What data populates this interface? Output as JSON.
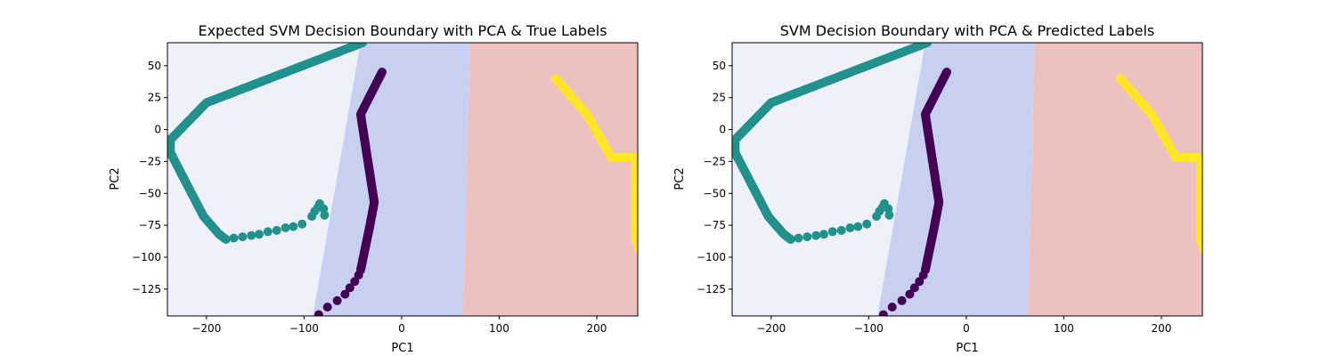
{
  "chart_data": [
    {
      "type": "scatter",
      "title": "Expected SVM Decision Boundary with PCA & True Labels",
      "xlabel": "PC1",
      "ylabel": "PC2",
      "xlim": [
        -240,
        242
      ],
      "ylim": [
        -146,
        68
      ],
      "xticks": [
        -200,
        -100,
        0,
        100,
        200
      ],
      "yticks": [
        50,
        25,
        0,
        -25,
        -50,
        -75,
        -100,
        -125
      ],
      "regions": [
        {
          "color": "#eef1f9",
          "polygon": [
            [
              -240,
              68
            ],
            [
              -42,
              68
            ],
            [
              -91,
              -146
            ],
            [
              -240,
              -146
            ]
          ]
        },
        {
          "color": "#c7d0f1",
          "polygon": [
            [
              -42,
              68
            ],
            [
              70,
              68
            ],
            [
              63,
              -146
            ],
            [
              -91,
              -146
            ]
          ]
        },
        {
          "color": "#eec1c1",
          "polygon": [
            [
              70,
              68
            ],
            [
              242,
              68
            ],
            [
              242,
              -146
            ],
            [
              63,
              -146
            ]
          ]
        }
      ],
      "series": [
        {
          "color": "#21918c",
          "dense": true,
          "points": [
            [
              -40,
              68
            ],
            [
              -200,
              21
            ],
            [
              -237,
              -8
            ],
            [
              -237,
              -18
            ],
            [
              -203,
              -68
            ],
            [
              -187,
              -82
            ],
            [
              -180,
              -86
            ]
          ]
        },
        {
          "color": "#21918c",
          "dense": false,
          "points": [
            [
              -180,
              -86
            ],
            [
              -172,
              -85
            ],
            [
              -163,
              -84
            ],
            [
              -154,
              -83
            ],
            [
              -146,
              -82
            ],
            [
              -137,
              -80
            ],
            [
              -128,
              -79
            ],
            [
              -119,
              -77
            ],
            [
              -111,
              -76
            ],
            [
              -102,
              -74
            ],
            [
              -92,
              -68
            ],
            [
              -89,
              -64
            ],
            [
              -86,
              -61
            ],
            [
              -84,
              -58
            ],
            [
              -80,
              -62
            ],
            [
              -79,
              -67
            ]
          ]
        },
        {
          "color": "#440154",
          "dense": true,
          "points": [
            [
              -20,
              45
            ],
            [
              -42,
              12
            ],
            [
              -28,
              -57
            ],
            [
              -33,
              -77
            ],
            [
              -42,
              -110
            ]
          ]
        },
        {
          "color": "#440154",
          "dense": false,
          "points": [
            [
              -44,
              -114
            ],
            [
              -48,
              -119
            ],
            [
              -53,
              -124
            ],
            [
              -58,
              -129
            ],
            [
              -66,
              -134
            ],
            [
              -76,
              -139
            ],
            [
              -85,
              -145
            ]
          ]
        },
        {
          "color": "#fde725",
          "dense": true,
          "points": [
            [
              158,
              40
            ],
            [
              190,
              12
            ],
            [
              215,
              -22
            ],
            [
              240,
              -22
            ],
            [
              240,
              -85
            ],
            [
              244,
              -95
            ]
          ]
        }
      ]
    },
    {
      "type": "scatter",
      "title": "SVM Decision Boundary with PCA & Predicted Labels",
      "xlabel": "PC1",
      "ylabel": "PC2",
      "xlim": [
        -240,
        242
      ],
      "ylim": [
        -146,
        68
      ],
      "xticks": [
        -200,
        -100,
        0,
        100,
        200
      ],
      "yticks": [
        50,
        25,
        0,
        -25,
        -50,
        -75,
        -100,
        -125
      ],
      "regions": [
        {
          "color": "#eef1f9",
          "polygon": [
            [
              -240,
              68
            ],
            [
              -42,
              68
            ],
            [
              -91,
              -146
            ],
            [
              -240,
              -146
            ]
          ]
        },
        {
          "color": "#c7d0f1",
          "polygon": [
            [
              -42,
              68
            ],
            [
              70,
              68
            ],
            [
              63,
              -146
            ],
            [
              -91,
              -146
            ]
          ]
        },
        {
          "color": "#eec1c1",
          "polygon": [
            [
              70,
              68
            ],
            [
              242,
              68
            ],
            [
              242,
              -146
            ],
            [
              63,
              -146
            ]
          ]
        }
      ],
      "series": [
        {
          "color": "#21918c",
          "dense": true,
          "points": [
            [
              -40,
              68
            ],
            [
              -200,
              21
            ],
            [
              -237,
              -8
            ],
            [
              -237,
              -18
            ],
            [
              -203,
              -68
            ],
            [
              -187,
              -82
            ],
            [
              -180,
              -86
            ]
          ]
        },
        {
          "color": "#21918c",
          "dense": false,
          "points": [
            [
              -180,
              -86
            ],
            [
              -172,
              -85
            ],
            [
              -163,
              -84
            ],
            [
              -154,
              -83
            ],
            [
              -146,
              -82
            ],
            [
              -137,
              -80
            ],
            [
              -128,
              -79
            ],
            [
              -119,
              -77
            ],
            [
              -111,
              -76
            ],
            [
              -102,
              -74
            ],
            [
              -92,
              -68
            ],
            [
              -89,
              -64
            ],
            [
              -86,
              -61
            ],
            [
              -84,
              -58
            ],
            [
              -80,
              -62
            ],
            [
              -79,
              -67
            ]
          ]
        },
        {
          "color": "#440154",
          "dense": true,
          "points": [
            [
              -20,
              45
            ],
            [
              -42,
              12
            ],
            [
              -28,
              -57
            ],
            [
              -33,
              -77
            ],
            [
              -42,
              -110
            ]
          ]
        },
        {
          "color": "#440154",
          "dense": false,
          "points": [
            [
              -44,
              -114
            ],
            [
              -48,
              -119
            ],
            [
              -53,
              -124
            ],
            [
              -58,
              -129
            ],
            [
              -66,
              -134
            ],
            [
              -76,
              -139
            ],
            [
              -85,
              -145
            ]
          ]
        },
        {
          "color": "#fde725",
          "dense": true,
          "points": [
            [
              158,
              40
            ],
            [
              190,
              12
            ],
            [
              215,
              -22
            ],
            [
              240,
              -22
            ],
            [
              240,
              -85
            ],
            [
              244,
              -95
            ]
          ]
        }
      ]
    }
  ]
}
